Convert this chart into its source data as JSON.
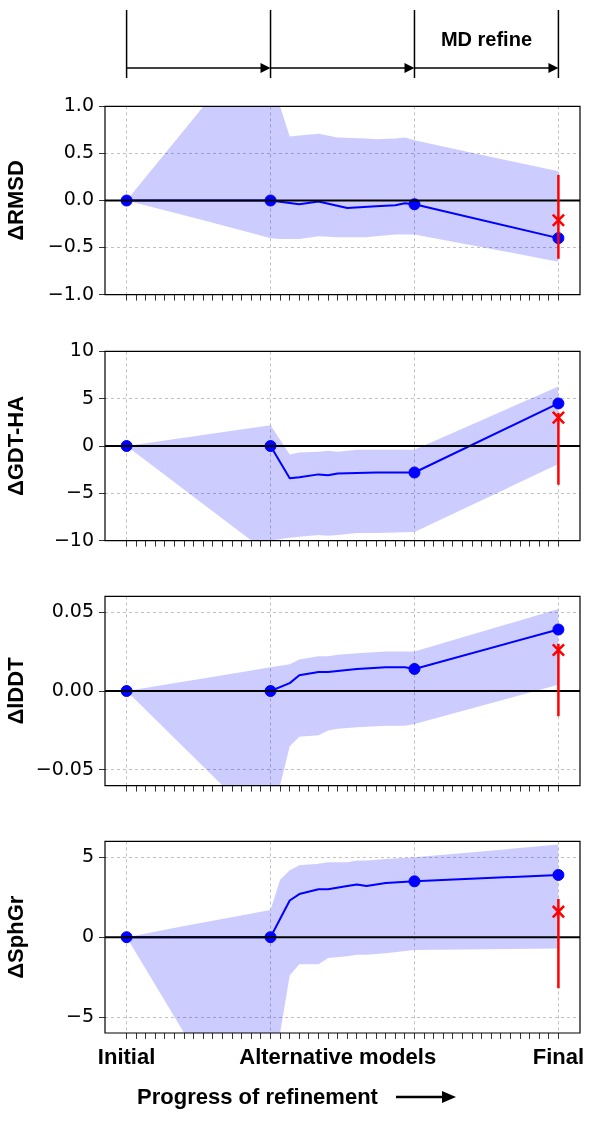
{
  "chart_data": [
    {
      "type": "line",
      "ylabel": "ΔRMSD",
      "annotations": [
        "MD refine"
      ],
      "grid": true,
      "tick_labels": "y",
      "ylim": [
        -1,
        1
      ],
      "categories": [
        "Initial",
        null,
        null,
        null,
        null,
        null,
        null,
        null,
        null,
        null,
        null,
        null,
        null,
        null,
        null,
        null,
        null,
        null,
        null,
        null,
        null,
        null,
        "Alternative models",
        null,
        null,
        null,
        null,
        null,
        null,
        null,
        null,
        null,
        null,
        null,
        null,
        null,
        null,
        null,
        null,
        null,
        null,
        null,
        null,
        null,
        null,
        "Final"
      ],
      "yticks": [
        {
          "value": -1,
          "label": "−1.0"
        },
        {
          "value": -0.5,
          "label": "−0.5"
        },
        {
          "value": 0,
          "label": "0.0"
        },
        {
          "value": 0.5,
          "label": "0.5"
        },
        {
          "value": 1,
          "label": "1.0"
        }
      ],
      "ref_lines": [
        {
          "axis": "y",
          "value": 0,
          "color": "#000000"
        }
      ],
      "series": [
        {
          "color": "#0000ff",
          "marker": "none",
          "values": [
            0,
            null,
            null,
            null,
            null,
            null,
            null,
            null,
            null,
            null,
            null,
            null,
            null,
            null,
            null,
            0,
            null,
            null,
            -0.04,
            null,
            -0.01,
            null,
            null,
            -0.08,
            null,
            null,
            -0.06,
            null,
            -0.05,
            -0.03,
            -0.04,
            null,
            null,
            null,
            null,
            null,
            null,
            null,
            null,
            null,
            null,
            null,
            null,
            null,
            null,
            -0.4
          ],
          "upper": [
            0,
            null,
            null,
            null,
            null,
            null,
            null,
            null,
            1.0,
            null,
            null,
            null,
            null,
            null,
            null,
            1.0,
            1.0,
            0.68,
            0.69,
            null,
            0.71,
            null,
            0.67,
            null,
            null,
            0.66,
            0.65,
            null,
            0.66,
            0.67,
            0.64,
            null,
            null,
            null,
            null,
            null,
            null,
            null,
            null,
            null,
            null,
            null,
            null,
            null,
            null,
            0.31
          ],
          "lower": [
            0,
            null,
            null,
            null,
            null,
            null,
            null,
            null,
            -0.21,
            null,
            null,
            null,
            null,
            null,
            null,
            -0.4,
            -0.41,
            -0.41,
            -0.41,
            null,
            -0.38,
            null,
            -0.39,
            null,
            null,
            -0.39,
            -0.38,
            null,
            -0.36,
            -0.36,
            -0.36,
            null,
            null,
            null,
            null,
            null,
            null,
            null,
            null,
            null,
            null,
            null,
            null,
            null,
            null,
            -0.65
          ]
        },
        {
          "type": "scatter",
          "color": "#0000ff",
          "marker": "circle",
          "values": [
            0,
            null,
            null,
            null,
            null,
            null,
            null,
            null,
            null,
            null,
            null,
            null,
            null,
            null,
            null,
            0,
            null,
            null,
            null,
            null,
            null,
            null,
            null,
            null,
            null,
            null,
            null,
            null,
            null,
            null,
            -0.04,
            null,
            null,
            null,
            null,
            null,
            null,
            null,
            null,
            null,
            null,
            null,
            null,
            null,
            null,
            -0.4
          ]
        },
        {
          "type": "scatter",
          "color": "#ff0000",
          "marker": "cross",
          "x": [
            "Final"
          ],
          "values": [
            -0.21
          ],
          "errors": [
            [
              -0.62,
              0.27
            ]
          ]
        }
      ]
    },
    {
      "type": "line",
      "ylabel": "ΔGDT-HA",
      "grid": true,
      "tick_labels": "y",
      "ylim": [
        -10,
        10
      ],
      "categories": [
        "Initial",
        null,
        null,
        null,
        null,
        null,
        null,
        null,
        null,
        null,
        null,
        null,
        null,
        null,
        null,
        null,
        null,
        null,
        null,
        null,
        null,
        null,
        "Alternative models",
        null,
        null,
        null,
        null,
        null,
        null,
        null,
        null,
        null,
        null,
        null,
        null,
        null,
        null,
        null,
        null,
        null,
        null,
        null,
        null,
        null,
        null,
        "Final"
      ],
      "yticks": [
        {
          "value": -10,
          "label": "−10"
        },
        {
          "value": -5,
          "label": "−5"
        },
        0,
        5,
        10
      ],
      "ref_lines": [
        {
          "axis": "y",
          "value": 0,
          "color": "#000000"
        }
      ],
      "series": [
        {
          "color": "#0000ff",
          "marker": "none",
          "values": [
            0,
            null,
            null,
            null,
            null,
            null,
            null,
            null,
            null,
            null,
            null,
            null,
            null,
            null,
            null,
            0,
            null,
            -3.4,
            -3.3,
            null,
            -3.0,
            -3.1,
            -2.9,
            null,
            null,
            null,
            -2.8,
            null,
            null,
            null,
            -2.8,
            null,
            null,
            null,
            null,
            null,
            null,
            null,
            null,
            null,
            null,
            null,
            null,
            null,
            null,
            4.5
          ],
          "upper": [
            0,
            null,
            null,
            null,
            null,
            null,
            null,
            null,
            null,
            null,
            null,
            null,
            null,
            1.9,
            null,
            2.2,
            null,
            -0.9,
            -0.7,
            null,
            -0.6,
            -0.5,
            -0.6,
            null,
            -0.4,
            null,
            -0.4,
            null,
            null,
            null,
            -0.4,
            null,
            null,
            null,
            null,
            null,
            null,
            null,
            null,
            null,
            null,
            null,
            null,
            null,
            null,
            6.3
          ],
          "lower": [
            0,
            null,
            null,
            null,
            null,
            null,
            null,
            null,
            null,
            null,
            null,
            null,
            null,
            -10,
            null,
            -10,
            null,
            -9.7,
            -9.6,
            null,
            -9.4,
            -9.5,
            -9.4,
            null,
            -9.2,
            null,
            -9.2,
            null,
            null,
            null,
            -9.1,
            null,
            null,
            null,
            null,
            null,
            null,
            null,
            null,
            null,
            null,
            null,
            null,
            null,
            null,
            -1.9
          ]
        },
        {
          "type": "scatter",
          "color": "#0000ff",
          "marker": "circle",
          "values": [
            0,
            null,
            null,
            null,
            null,
            null,
            null,
            null,
            null,
            null,
            null,
            null,
            null,
            null,
            null,
            0,
            null,
            null,
            null,
            null,
            null,
            null,
            null,
            null,
            null,
            null,
            null,
            null,
            null,
            null,
            -2.8,
            null,
            null,
            null,
            null,
            null,
            null,
            null,
            null,
            null,
            null,
            null,
            null,
            null,
            null,
            4.5
          ]
        },
        {
          "type": "scatter",
          "color": "#ff0000",
          "marker": "cross",
          "x": [
            "Final"
          ],
          "values": [
            3.0
          ],
          "errors": [
            [
              -4.1,
              3.5
            ]
          ]
        }
      ]
    },
    {
      "type": "line",
      "ylabel": "ΔlDDT",
      "grid": true,
      "tick_labels": "y",
      "ylim": [
        -0.06,
        0.06
      ],
      "categories": [
        "Initial",
        null,
        null,
        null,
        null,
        null,
        null,
        null,
        null,
        null,
        null,
        null,
        null,
        null,
        null,
        null,
        null,
        null,
        null,
        null,
        null,
        null,
        "Alternative models",
        null,
        null,
        null,
        null,
        null,
        null,
        null,
        null,
        null,
        null,
        null,
        null,
        null,
        null,
        null,
        null,
        null,
        null,
        null,
        null,
        null,
        null,
        "Final"
      ],
      "yticks": [
        {
          "value": -0.05,
          "label": "−0.05"
        },
        {
          "value": 0,
          "label": "0.00"
        },
        0.05
      ],
      "ref_lines": [
        {
          "axis": "y",
          "value": 0,
          "color": "#000000"
        }
      ],
      "series": [
        {
          "color": "#0000ff",
          "marker": "none",
          "values": [
            0,
            null,
            null,
            null,
            null,
            null,
            null,
            null,
            null,
            null,
            null,
            null,
            null,
            null,
            null,
            0,
            null,
            0.005,
            0.01,
            null,
            0.012,
            0.012,
            null,
            null,
            0.014,
            null,
            null,
            0.015,
            null,
            0.015,
            0.014,
            null,
            null,
            null,
            null,
            null,
            null,
            null,
            null,
            null,
            null,
            null,
            null,
            null,
            null,
            0.039
          ],
          "upper": [
            0,
            null,
            null,
            null,
            null,
            null,
            null,
            null,
            null,
            null,
            0.01,
            null,
            null,
            null,
            null,
            0.015,
            0.016,
            0.017,
            0.02,
            null,
            0.022,
            0.022,
            0.023,
            null,
            0.024,
            null,
            null,
            0.025,
            null,
            0.025,
            0.025,
            null,
            null,
            null,
            null,
            null,
            null,
            null,
            null,
            null,
            null,
            null,
            null,
            null,
            null,
            0.052
          ],
          "lower": [
            0,
            null,
            null,
            null,
            null,
            null,
            null,
            null,
            null,
            null,
            -0.06,
            null,
            null,
            null,
            null,
            -0.06,
            -0.06,
            -0.035,
            -0.029,
            null,
            -0.028,
            -0.025,
            -0.024,
            null,
            -0.023,
            null,
            null,
            -0.022,
            null,
            -0.022,
            -0.021,
            null,
            null,
            null,
            null,
            null,
            null,
            null,
            null,
            null,
            null,
            null,
            null,
            null,
            null,
            0.004
          ]
        },
        {
          "type": "scatter",
          "color": "#0000ff",
          "marker": "circle",
          "values": [
            0,
            null,
            null,
            null,
            null,
            null,
            null,
            null,
            null,
            null,
            null,
            null,
            null,
            null,
            null,
            0,
            null,
            null,
            null,
            null,
            null,
            null,
            null,
            null,
            null,
            null,
            null,
            null,
            null,
            null,
            0.014,
            null,
            null,
            null,
            null,
            null,
            null,
            null,
            null,
            null,
            null,
            null,
            null,
            null,
            null,
            0.039
          ]
        },
        {
          "type": "scatter",
          "color": "#ff0000",
          "marker": "cross",
          "x": [
            "Final"
          ],
          "values": [
            0.026
          ],
          "errors": [
            [
              -0.016,
              0.03
            ]
          ]
        }
      ]
    },
    {
      "type": "line",
      "ylabel": "ΔSphGr",
      "xlabel": "Progress of refinement",
      "grid": true,
      "ylim": [
        -6,
        6
      ],
      "categories": [
        "Initial",
        null,
        null,
        null,
        null,
        null,
        null,
        null,
        null,
        null,
        null,
        null,
        null,
        null,
        null,
        null,
        null,
        null,
        null,
        null,
        null,
        null,
        "Alternative models",
        null,
        null,
        null,
        null,
        null,
        null,
        null,
        null,
        null,
        null,
        null,
        null,
        null,
        null,
        null,
        null,
        null,
        null,
        null,
        null,
        null,
        null,
        "Final"
      ],
      "yticks": [
        {
          "value": -5,
          "label": "−5"
        },
        0,
        5
      ],
      "ref_lines": [
        {
          "axis": "y",
          "value": 0,
          "color": "#000000"
        }
      ],
      "series": [
        {
          "color": "#0000ff",
          "marker": "none",
          "values": [
            0,
            null,
            null,
            null,
            null,
            null,
            null,
            null,
            null,
            null,
            null,
            null,
            null,
            null,
            null,
            0,
            null,
            2.3,
            2.7,
            null,
            3.0,
            3.0,
            null,
            3.2,
            3.3,
            3.2,
            null,
            3.4,
            null,
            null,
            3.5,
            null,
            null,
            null,
            null,
            null,
            null,
            null,
            null,
            null,
            null,
            null,
            null,
            null,
            null,
            3.9
          ],
          "upper": [
            0,
            null,
            null,
            null,
            null,
            null,
            0.7,
            null,
            null,
            null,
            null,
            null,
            null,
            null,
            null,
            1.7,
            3.6,
            4.2,
            4.5,
            null,
            4.6,
            4.7,
            null,
            4.7,
            4.8,
            4.8,
            null,
            4.9,
            null,
            null,
            5.0,
            null,
            null,
            null,
            null,
            null,
            null,
            null,
            null,
            null,
            null,
            null,
            null,
            null,
            null,
            5.8
          ],
          "lower": [
            0,
            null,
            null,
            null,
            null,
            null,
            -6,
            null,
            null,
            null,
            null,
            null,
            null,
            null,
            null,
            -6,
            -6,
            -2.4,
            -1.7,
            null,
            -1.7,
            -1.3,
            null,
            -1.2,
            -1.1,
            -1.1,
            null,
            -1.0,
            null,
            null,
            -0.8,
            null,
            null,
            null,
            null,
            null,
            null,
            null,
            null,
            null,
            null,
            null,
            null,
            null,
            null,
            -0.7
          ]
        },
        {
          "type": "scatter",
          "color": "#0000ff",
          "marker": "circle",
          "values": [
            0,
            null,
            null,
            null,
            null,
            null,
            null,
            null,
            null,
            null,
            null,
            null,
            null,
            null,
            null,
            0,
            null,
            null,
            null,
            null,
            null,
            null,
            null,
            null,
            null,
            null,
            null,
            null,
            null,
            null,
            3.5,
            null,
            null,
            null,
            null,
            null,
            null,
            null,
            null,
            null,
            null,
            null,
            null,
            null,
            null,
            3.9
          ]
        },
        {
          "type": "scatter",
          "color": "#ff0000",
          "marker": "cross",
          "x": [
            "Final"
          ],
          "values": [
            1.6
          ],
          "errors": [
            [
              -3.2,
              2.4
            ]
          ]
        }
      ]
    }
  ]
}
